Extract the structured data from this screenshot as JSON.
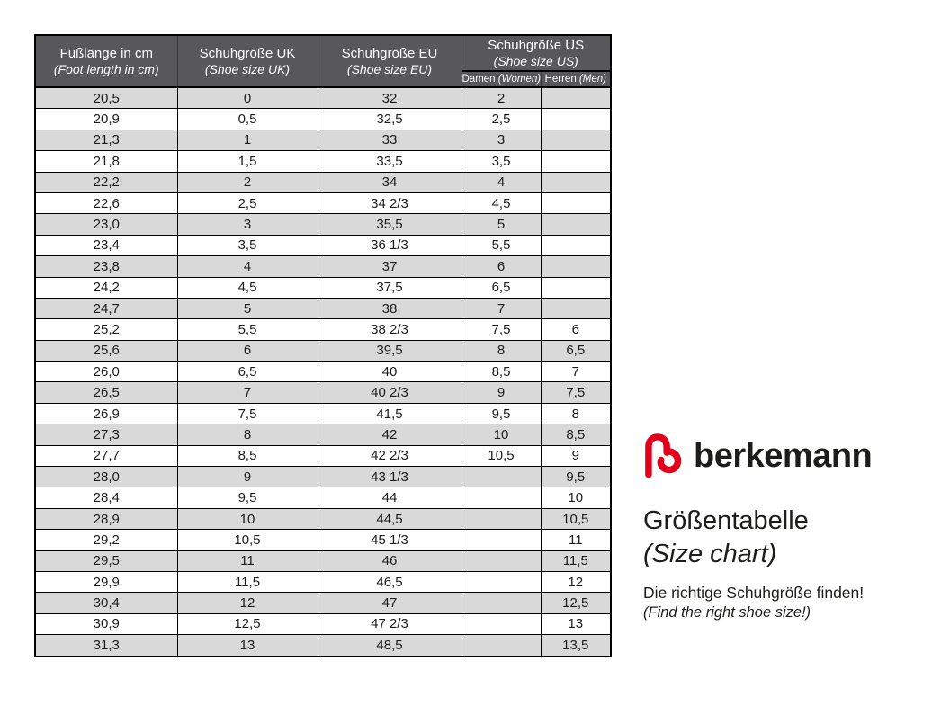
{
  "table": {
    "columns": [
      {
        "title": "Fußlänge in cm",
        "subtitle": "(Foot length in cm)"
      },
      {
        "title": "Schuhgröße UK",
        "subtitle": "(Shoe size UK)"
      },
      {
        "title": "Schuhgröße EU",
        "subtitle": "(Shoe size EU)"
      },
      {
        "title": "Schuhgröße US",
        "subtitle": "(Shoe size US)",
        "subcolumns": [
          {
            "label_de": "Damen",
            "label_en": "(Women)"
          },
          {
            "label_de": "Herren",
            "label_en": "(Men)"
          }
        ]
      }
    ],
    "rows": [
      [
        "20,5",
        "0",
        "32",
        "2",
        ""
      ],
      [
        "20,9",
        "0,5",
        "32,5",
        "2,5",
        ""
      ],
      [
        "21,3",
        "1",
        "33",
        "3",
        ""
      ],
      [
        "21,8",
        "1,5",
        "33,5",
        "3,5",
        ""
      ],
      [
        "22,2",
        "2",
        "34",
        "4",
        ""
      ],
      [
        "22,6",
        "2,5",
        "34 2/3",
        "4,5",
        ""
      ],
      [
        "23,0",
        "3",
        "35,5",
        "5",
        ""
      ],
      [
        "23,4",
        "3,5",
        "36 1/3",
        "5,5",
        ""
      ],
      [
        "23,8",
        "4",
        "37",
        "6",
        ""
      ],
      [
        "24,2",
        "4,5",
        "37,5",
        "6,5",
        ""
      ],
      [
        "24,7",
        "5",
        "38",
        "7",
        ""
      ],
      [
        "25,2",
        "5,5",
        "38 2/3",
        "7,5",
        "6"
      ],
      [
        "25,6",
        "6",
        "39,5",
        "8",
        "6,5"
      ],
      [
        "26,0",
        "6,5",
        "40",
        "8,5",
        "7"
      ],
      [
        "26,5",
        "7",
        "40 2/3",
        "9",
        "7,5"
      ],
      [
        "26,9",
        "7,5",
        "41,5",
        "9,5",
        "8"
      ],
      [
        "27,3",
        "8",
        "42",
        "10",
        "8,5"
      ],
      [
        "27,7",
        "8,5",
        "42 2/3",
        "10,5",
        "9"
      ],
      [
        "28,0",
        "9",
        "43 1/3",
        "",
        "9,5"
      ],
      [
        "28,4",
        "9,5",
        "44",
        "",
        "10"
      ],
      [
        "28,9",
        "10",
        "44,5",
        "",
        "10,5"
      ],
      [
        "29,2",
        "10,5",
        "45 1/3",
        "",
        "11"
      ],
      [
        "29,5",
        "11",
        "46",
        "",
        "11,5"
      ],
      [
        "29,9",
        "11,5",
        "46,5",
        "",
        "12"
      ],
      [
        "30,4",
        "12",
        "47",
        "",
        "12,5"
      ],
      [
        "30,9",
        "12,5",
        "47 2/3",
        "",
        "13"
      ],
      [
        "31,3",
        "13",
        "48,5",
        "",
        "13,5"
      ]
    ],
    "colors": {
      "header_bg": "#58585a",
      "header_text": "#ffffff",
      "row_alt_bg": "#d9d9d9",
      "row_bg": "#ffffff",
      "border": "#000000"
    }
  },
  "branding": {
    "wordmark": "berkemann",
    "logo_color": "#e2001a",
    "title_de": "Größentabelle",
    "title_en": "(Size chart)",
    "tagline_de": "Die richtige Schuhgröße finden!",
    "tagline_en": "(Find the right shoe size!)"
  }
}
